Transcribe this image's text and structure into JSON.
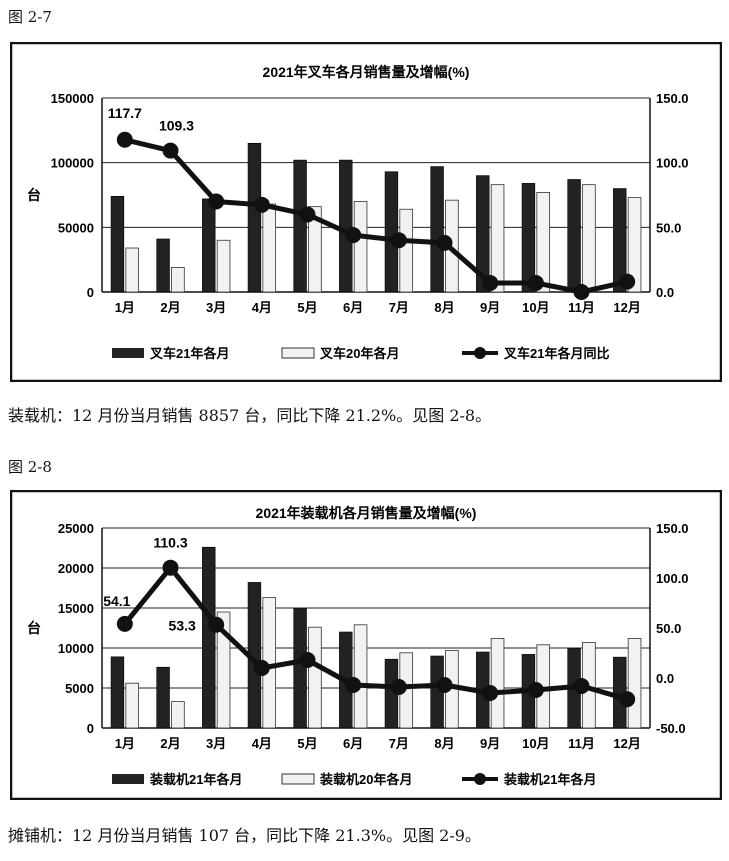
{
  "page": {
    "fig1_caption": "图 2-7",
    "para1": "装载机：12 月份当月销售 8857 台，同比下降 21.2%。见图 2-8。",
    "fig2_caption": "图 2-8",
    "para2": "摊铺机：12 月份当月销售 107 台，同比下降 21.3%。见图 2-9。"
  },
  "colors": {
    "bar21": "#222222",
    "bar20": "#f2f2f2",
    "line": "#111111"
  },
  "chart_data": [
    {
      "type": "bar",
      "title": "2021年叉车各月销售量及增幅(%)",
      "ylabel": "台",
      "categories": [
        "1月",
        "2月",
        "3月",
        "4月",
        "5月",
        "6月",
        "7月",
        "8月",
        "9月",
        "10月",
        "11月",
        "12月"
      ],
      "ylim": [
        0,
        150000
      ],
      "y_ticks": [
        "0",
        "50000",
        "100000",
        "150000"
      ],
      "y2lim": [
        0,
        150
      ],
      "y2_ticks": [
        "0.0",
        "50.0",
        "100.0",
        "150.0"
      ],
      "series": [
        {
          "name": "叉车21年各月",
          "values": [
            74000,
            41000,
            72000,
            115000,
            102000,
            102000,
            93000,
            97000,
            90000,
            84000,
            87000,
            80000
          ]
        },
        {
          "name": "叉车20年各月",
          "values": [
            34000,
            19000,
            40000,
            68000,
            66000,
            70000,
            64000,
            71000,
            83000,
            77000,
            83000,
            73000
          ]
        },
        {
          "name": "叉车21年各月同比",
          "axis": "right",
          "values": [
            117.7,
            109.3,
            70,
            67.4,
            59.9,
            44,
            40,
            38,
            7,
            7,
            0,
            8
          ]
        }
      ],
      "data_labels": [
        "117.7",
        "109.3",
        "",
        "",
        "",
        "",
        "",
        "",
        "",
        "",
        "",
        ""
      ],
      "legend_position": "bottom",
      "grid": true
    },
    {
      "type": "bar",
      "title": "2021年装载机各月销售量及增幅(%)",
      "ylabel": "台",
      "categories": [
        "1月",
        "2月",
        "3月",
        "4月",
        "5月",
        "6月",
        "7月",
        "8月",
        "9月",
        "10月",
        "11月",
        "12月"
      ],
      "ylim": [
        0,
        25000
      ],
      "y_ticks": [
        "0",
        "5000",
        "10000",
        "15000",
        "20000",
        "25000"
      ],
      "y2lim": [
        -50,
        150
      ],
      "y2_ticks": [
        "-50.0",
        "0.0",
        "50.0",
        "100.0",
        "150.0"
      ],
      "series": [
        {
          "name": "装载机21年各月",
          "values": [
            8900,
            7600,
            22600,
            18200,
            14900,
            12000,
            8600,
            9000,
            9500,
            9200,
            9900,
            8857
          ]
        },
        {
          "name": "装载机20年各月",
          "values": [
            5600,
            3300,
            14500,
            16300,
            12600,
            12900,
            9400,
            9700,
            11200,
            10400,
            10700,
            11200
          ]
        },
        {
          "name": "装载机21年各月",
          "axis": "right",
          "values": [
            54.1,
            110.3,
            53.3,
            10,
            18,
            -7,
            -9,
            -7,
            -15,
            -12,
            -8,
            -21.2
          ]
        }
      ],
      "data_labels": [
        "54.1",
        "110.3",
        "53.3",
        "",
        "",
        "",
        "",
        "",
        "",
        "",
        "",
        ""
      ],
      "legend_position": "bottom",
      "grid": true
    }
  ]
}
